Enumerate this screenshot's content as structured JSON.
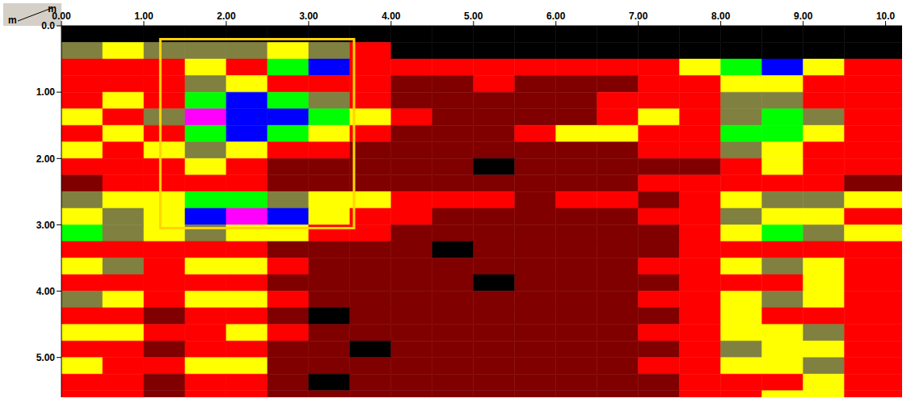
{
  "chart_data": {
    "type": "heatmap",
    "xlabel": "m",
    "ylabel": "m",
    "xlim": [
      0,
      10.2
    ],
    "ylim": [
      0,
      5.6
    ],
    "xticks": [
      {
        "value": 0,
        "label": "0.00"
      },
      {
        "value": 1,
        "label": "1.00"
      },
      {
        "value": 2,
        "label": "2.00"
      },
      {
        "value": 3,
        "label": "3.00"
      },
      {
        "value": 4,
        "label": "4.00"
      },
      {
        "value": 5,
        "label": "5.00"
      },
      {
        "value": 6,
        "label": "6.00"
      },
      {
        "value": 7,
        "label": "7.00"
      },
      {
        "value": 8,
        "label": "8.00"
      },
      {
        "value": 9,
        "label": "9.00"
      },
      {
        "value": 10,
        "label": "10.0"
      }
    ],
    "yticks": [
      {
        "value": 0,
        "label": "0.0"
      },
      {
        "value": 1,
        "label": "1.00"
      },
      {
        "value": 2,
        "label": "2.00"
      },
      {
        "value": 3,
        "label": "3.00"
      },
      {
        "value": 4,
        "label": "4.00"
      },
      {
        "value": 5,
        "label": "5.00"
      }
    ],
    "x_edges": [
      0,
      0.5,
      1,
      1.5,
      2,
      2.5,
      3,
      3.5,
      4,
      4.5,
      5,
      5.5,
      6,
      6.5,
      7,
      7.5,
      8,
      8.5,
      9,
      9.5,
      10.2
    ],
    "y_edges": [
      0,
      0.25,
      0.5,
      0.75,
      1,
      1.25,
      1.5,
      1.75,
      2,
      2.25,
      2.5,
      2.75,
      3,
      3.25,
      3.5,
      3.75,
      4,
      4.25,
      4.5,
      4.75,
      5,
      5.25,
      5.5,
      5.6
    ],
    "zlim": [
      0,
      7
    ],
    "colorscale": [
      "#000000",
      "#800000",
      "#ff0000",
      "#ffff00",
      "#808040",
      "#00ff00",
      "#0000ff",
      "#ff00ff"
    ],
    "cells": [
      [
        0,
        0,
        0,
        0,
        0,
        0,
        0,
        0,
        0,
        0,
        0,
        0,
        0,
        0,
        0,
        0,
        0,
        0,
        0,
        0
      ],
      [
        4,
        3,
        4,
        4,
        4,
        3,
        4,
        2,
        0,
        0,
        0,
        0,
        0,
        0,
        0,
        0,
        0,
        0,
        0,
        0
      ],
      [
        2,
        2,
        2,
        3,
        2,
        5,
        6,
        2,
        2,
        2,
        2,
        2,
        2,
        2,
        2,
        3,
        5,
        6,
        3,
        2
      ],
      [
        2,
        2,
        2,
        4,
        3,
        2,
        2,
        2,
        1,
        1,
        2,
        1,
        1,
        1,
        2,
        2,
        3,
        3,
        2,
        2
      ],
      [
        2,
        3,
        2,
        5,
        6,
        5,
        4,
        2,
        1,
        1,
        1,
        1,
        1,
        2,
        2,
        2,
        4,
        4,
        2,
        2
      ],
      [
        3,
        2,
        4,
        7,
        6,
        6,
        5,
        3,
        2,
        1,
        1,
        1,
        1,
        2,
        3,
        2,
        4,
        5,
        4,
        2
      ],
      [
        2,
        3,
        2,
        5,
        6,
        5,
        3,
        2,
        1,
        1,
        1,
        2,
        3,
        3,
        2,
        2,
        5,
        5,
        3,
        2
      ],
      [
        3,
        2,
        3,
        4,
        3,
        2,
        2,
        1,
        1,
        1,
        1,
        1,
        1,
        1,
        2,
        2,
        4,
        3,
        2,
        2
      ],
      [
        2,
        2,
        2,
        3,
        2,
        1,
        1,
        1,
        1,
        1,
        0,
        1,
        1,
        1,
        1,
        1,
        2,
        3,
        2,
        2
      ],
      [
        1,
        2,
        2,
        2,
        2,
        1,
        1,
        1,
        1,
        1,
        1,
        1,
        1,
        1,
        2,
        2,
        2,
        2,
        2,
        1
      ],
      [
        4,
        3,
        3,
        5,
        5,
        4,
        3,
        3,
        2,
        2,
        2,
        1,
        2,
        2,
        1,
        2,
        3,
        4,
        4,
        3
      ],
      [
        3,
        4,
        3,
        6,
        7,
        6,
        3,
        2,
        2,
        1,
        1,
        1,
        1,
        1,
        2,
        2,
        4,
        3,
        3,
        2
      ],
      [
        5,
        4,
        3,
        4,
        3,
        3,
        2,
        2,
        1,
        1,
        1,
        1,
        1,
        1,
        1,
        2,
        3,
        5,
        4,
        3
      ],
      [
        2,
        2,
        2,
        2,
        2,
        1,
        1,
        1,
        1,
        0,
        1,
        1,
        1,
        1,
        1,
        2,
        2,
        2,
        2,
        2
      ],
      [
        3,
        4,
        2,
        3,
        3,
        2,
        1,
        1,
        1,
        1,
        1,
        1,
        1,
        1,
        2,
        2,
        3,
        4,
        3,
        2
      ],
      [
        2,
        2,
        2,
        2,
        2,
        1,
        1,
        1,
        1,
        1,
        0,
        1,
        1,
        1,
        1,
        2,
        2,
        2,
        3,
        2
      ],
      [
        4,
        3,
        2,
        3,
        3,
        2,
        1,
        1,
        1,
        1,
        1,
        1,
        1,
        1,
        2,
        2,
        3,
        4,
        3,
        2
      ],
      [
        2,
        2,
        1,
        2,
        2,
        1,
        0,
        1,
        1,
        1,
        1,
        1,
        1,
        1,
        1,
        2,
        3,
        2,
        2,
        2
      ],
      [
        3,
        3,
        2,
        2,
        3,
        2,
        1,
        1,
        1,
        1,
        1,
        1,
        1,
        1,
        2,
        2,
        3,
        3,
        4,
        2
      ],
      [
        2,
        2,
        1,
        2,
        2,
        1,
        1,
        0,
        1,
        1,
        1,
        1,
        1,
        1,
        1,
        2,
        4,
        3,
        3,
        2
      ],
      [
        3,
        2,
        2,
        3,
        3,
        1,
        1,
        1,
        1,
        1,
        1,
        1,
        1,
        1,
        2,
        2,
        3,
        3,
        4,
        2
      ],
      [
        2,
        2,
        1,
        2,
        2,
        1,
        0,
        1,
        1,
        1,
        1,
        1,
        1,
        1,
        1,
        2,
        2,
        2,
        3,
        2
      ],
      [
        2,
        2,
        1,
        2,
        2,
        1,
        1,
        1,
        1,
        1,
        1,
        1,
        1,
        1,
        1,
        2,
        2,
        3,
        3,
        2
      ]
    ],
    "annotations": [
      {
        "type": "rect",
        "x": [
          1.2,
          3.55
        ],
        "y": [
          0.2,
          3.05
        ],
        "color": "#ffd400"
      }
    ]
  }
}
